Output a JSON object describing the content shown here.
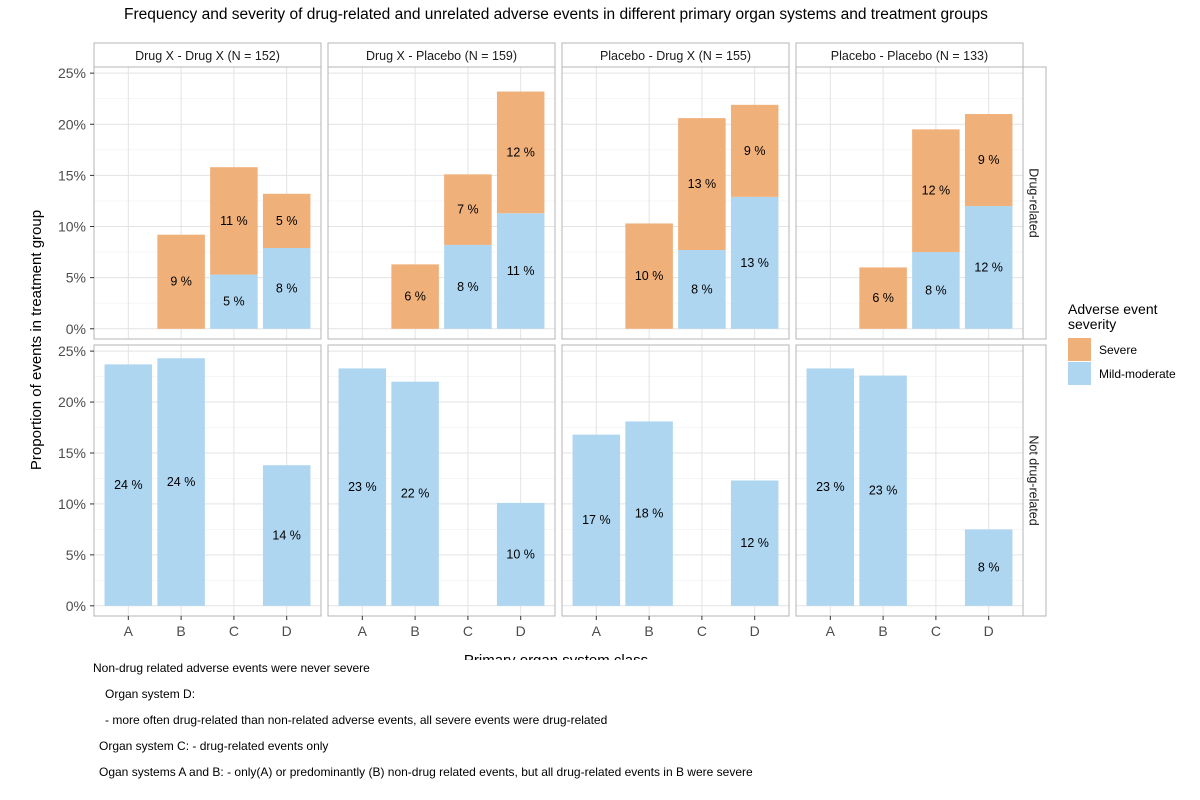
{
  "chart_data": {
    "type": "bar",
    "stacked": true,
    "title": "Frequency and severity of drug-related and unrelated adverse events in different primary organ systems and treatment groups",
    "xlabel": "Primary organ system class",
    "ylabel": "Proportion of events in treatment group",
    "categories": [
      "A",
      "B",
      "C",
      "D"
    ],
    "ylim": [
      0,
      25
    ],
    "yticks": [
      0,
      5,
      10,
      15,
      20,
      25
    ],
    "ytick_labels": [
      "0%",
      "5%",
      "10%",
      "15%",
      "20%",
      "25%"
    ],
    "grid": true,
    "legend": {
      "title": "Adverse event severity",
      "position": "right",
      "entries": [
        {
          "label": "Severe",
          "color": "#F0B07A"
        },
        {
          "label": "Mild-moderate",
          "color": "#AED6F1"
        }
      ]
    },
    "columns": [
      "Drug X - Drug X (N = 152)",
      "Drug X - Placebo (N = 159)",
      "Placebo - Drug X (N = 155)",
      "Placebo - Placebo (N = 133)"
    ],
    "rows": [
      "Drug-related",
      "Not drug-related"
    ],
    "panels": [
      {
        "row": 0,
        "col": 0,
        "severe": [
          0,
          9.2,
          10.5,
          5.3
        ],
        "mild": [
          0,
          0,
          5.3,
          7.9
        ],
        "severe_labels": [
          "",
          "9 %",
          "11 %",
          "5 %"
        ],
        "mild_labels": [
          "",
          "",
          "5 %",
          "8 %"
        ]
      },
      {
        "row": 0,
        "col": 1,
        "severe": [
          0,
          6.3,
          6.9,
          11.9
        ],
        "mild": [
          0,
          0,
          8.2,
          11.3
        ],
        "severe_labels": [
          "",
          "6 %",
          "7 %",
          "12 %"
        ],
        "mild_labels": [
          "",
          "",
          "8 %",
          "11 %"
        ]
      },
      {
        "row": 0,
        "col": 2,
        "severe": [
          0,
          10.3,
          12.9,
          9.0
        ],
        "mild": [
          0,
          0,
          7.7,
          12.9
        ],
        "severe_labels": [
          "",
          "10 %",
          "13 %",
          "9 %"
        ],
        "mild_labels": [
          "",
          "",
          "8 %",
          "13 %"
        ]
      },
      {
        "row": 0,
        "col": 3,
        "severe": [
          0,
          6.0,
          12.0,
          9.0
        ],
        "mild": [
          0,
          0,
          7.5,
          12.0
        ],
        "severe_labels": [
          "",
          "6 %",
          "12 %",
          "9 %"
        ],
        "mild_labels": [
          "",
          "",
          "8 %",
          "12 %"
        ]
      },
      {
        "row": 1,
        "col": 0,
        "severe": [
          0,
          0,
          0,
          0
        ],
        "mild": [
          23.7,
          24.3,
          0,
          13.8
        ],
        "severe_labels": [
          "",
          "",
          "",
          ""
        ],
        "mild_labels": [
          "24 %",
          "24 %",
          "",
          "14 %"
        ]
      },
      {
        "row": 1,
        "col": 1,
        "severe": [
          0,
          0,
          0,
          0
        ],
        "mild": [
          23.3,
          22.0,
          0,
          10.1
        ],
        "severe_labels": [
          "",
          "",
          "",
          ""
        ],
        "mild_labels": [
          "23 %",
          "22 %",
          "",
          "10 %"
        ]
      },
      {
        "row": 1,
        "col": 2,
        "severe": [
          0,
          0,
          0,
          0
        ],
        "mild": [
          16.8,
          18.1,
          0,
          12.3
        ],
        "severe_labels": [
          "",
          "",
          "",
          ""
        ],
        "mild_labels": [
          "17 %",
          "18 %",
          "",
          "12 %"
        ]
      },
      {
        "row": 1,
        "col": 3,
        "severe": [
          0,
          0,
          0,
          0
        ],
        "mild": [
          23.3,
          22.6,
          0,
          7.5
        ],
        "severe_labels": [
          "",
          "",
          "",
          ""
        ],
        "mild_labels": [
          "23 %",
          "23 %",
          "",
          "8 %"
        ]
      }
    ]
  },
  "annotations": [
    "Non-drug related adverse events were never severe",
    "Organ system D:",
    "- more often drug-related than non-related adverse events, all severe events were drug-related",
    "Organ system C: - drug-related events only",
    "Ogan systems A and B: - only(A) or predominantly (B) non-drug related events, but all drug-related events in B were severe"
  ]
}
